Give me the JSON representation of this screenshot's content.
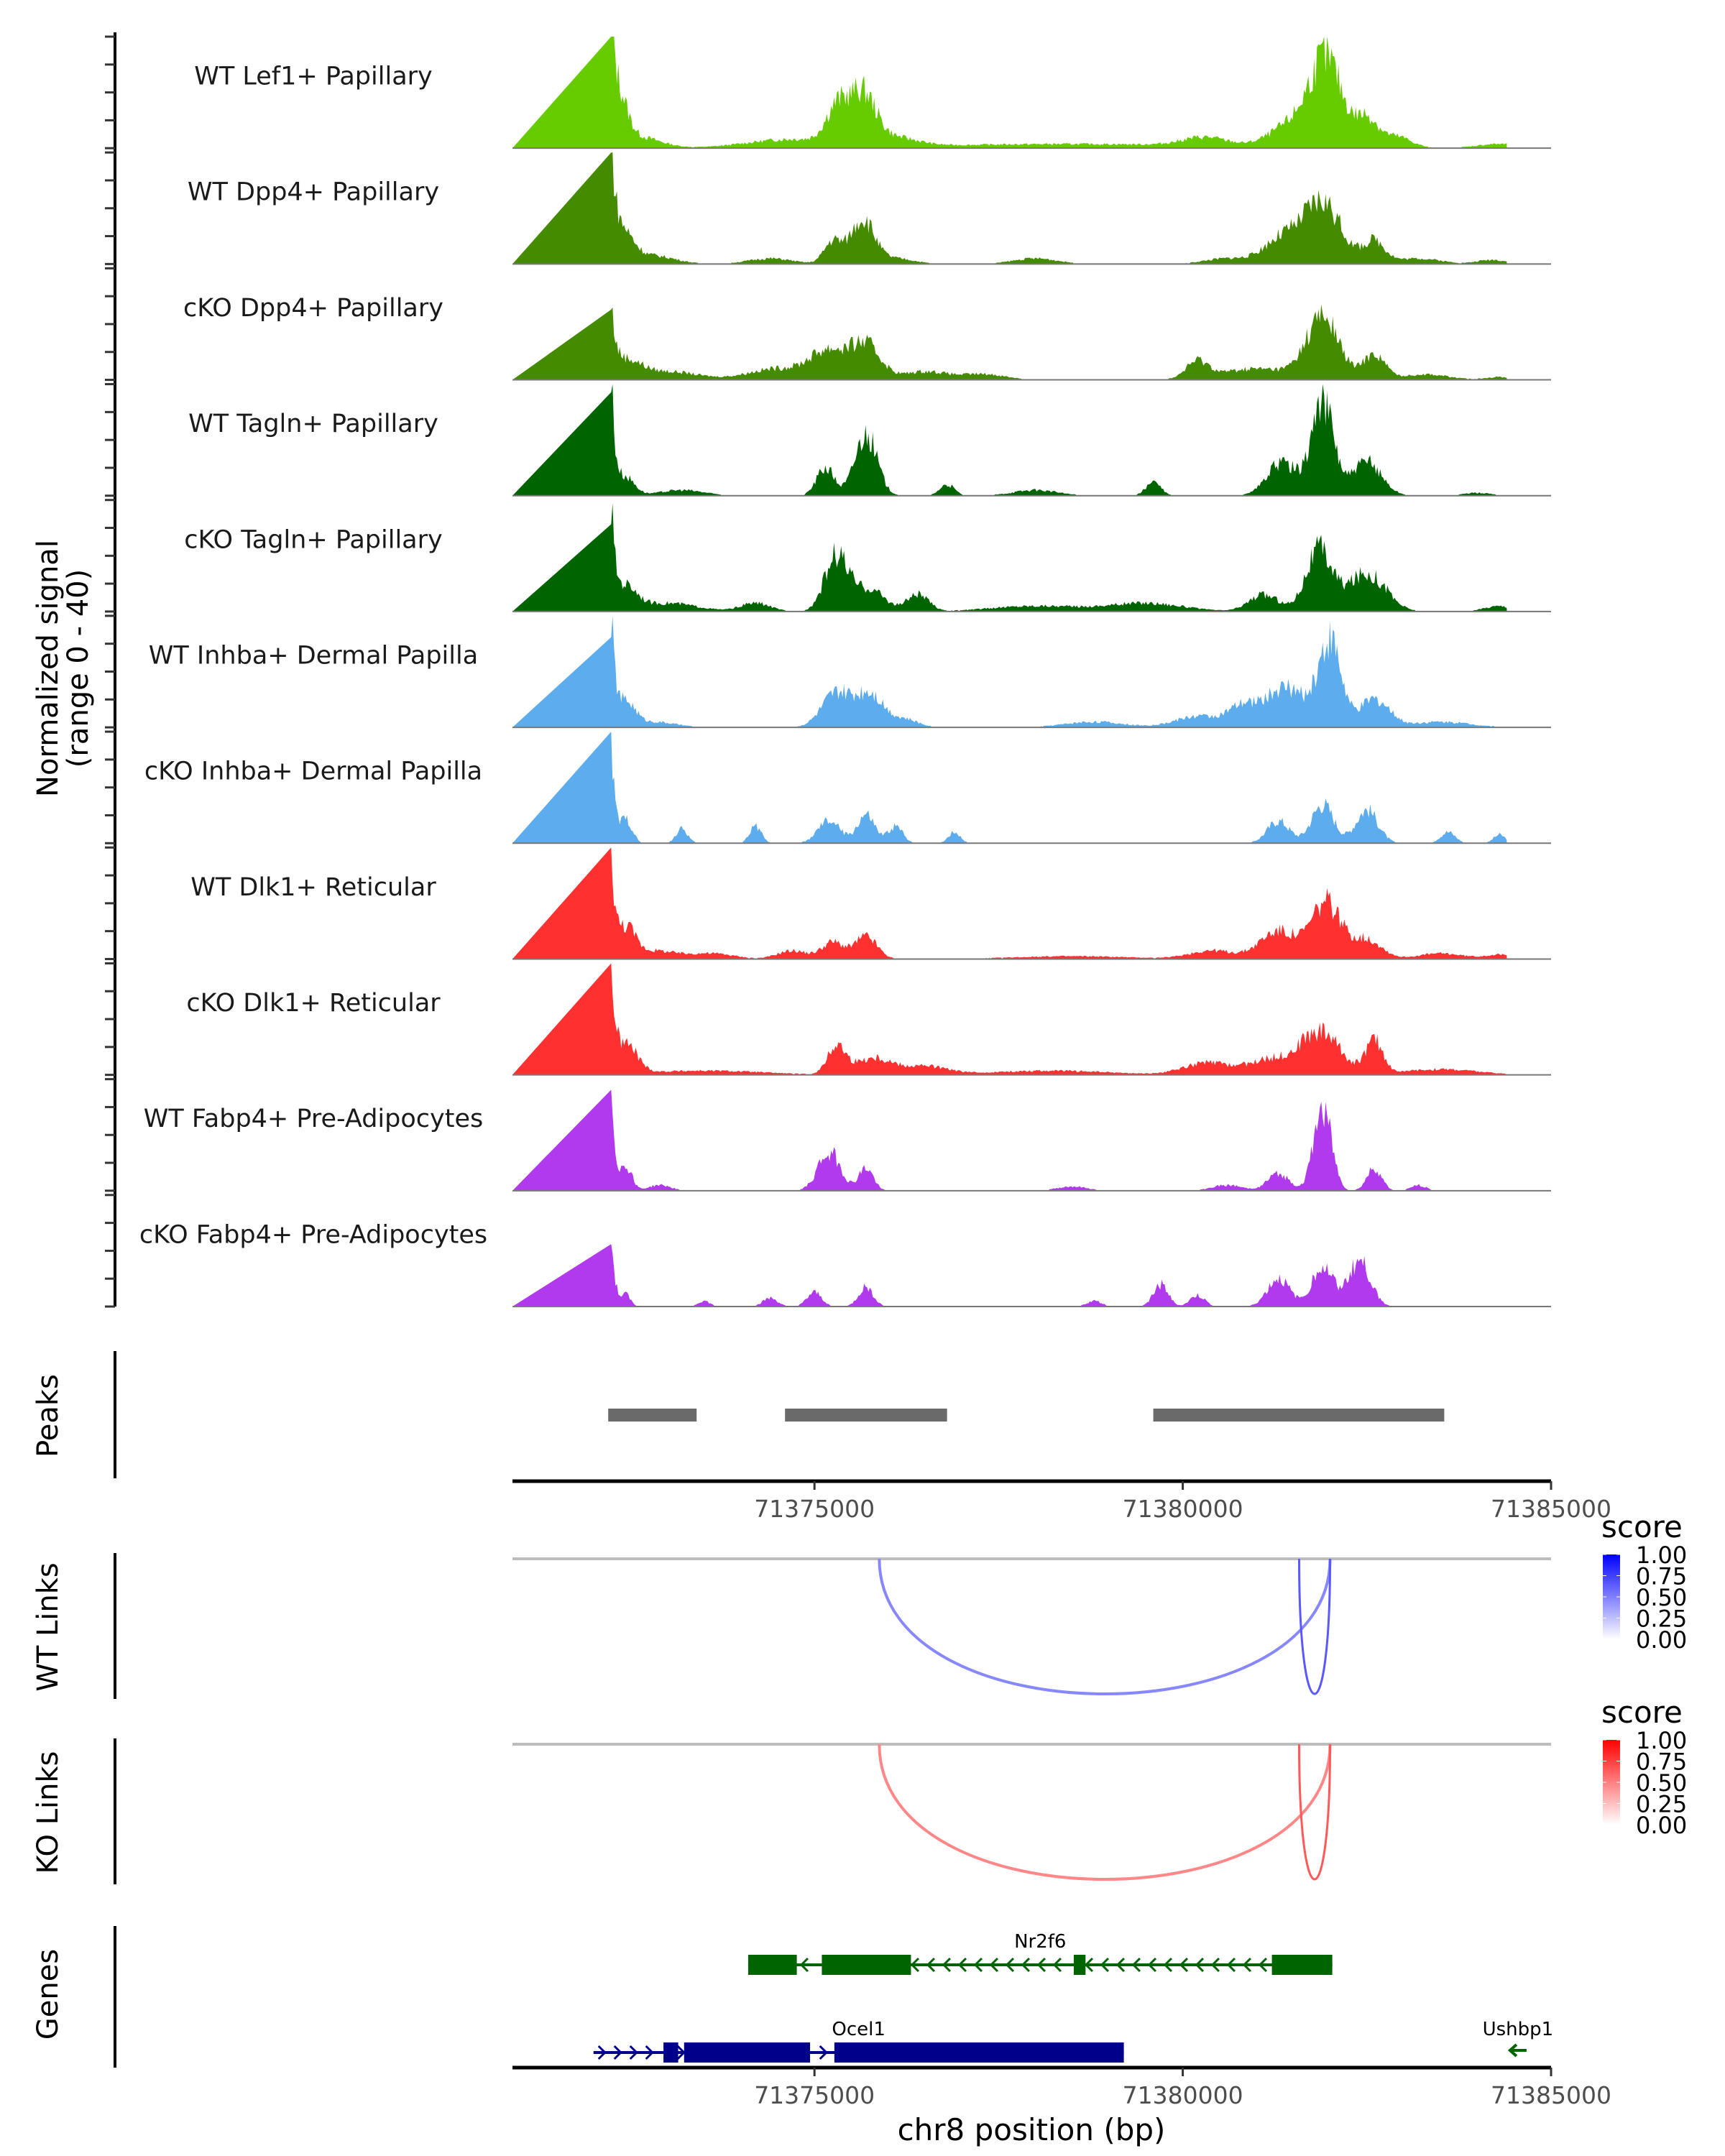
{
  "chart_data": {
    "type": "area",
    "title": "",
    "region": {
      "chrom": "chr8",
      "start": 71370900,
      "end": 71385000
    },
    "xlabel": "chr8 position (bp)",
    "x_ticks": [
      71375000,
      71380000,
      71385000
    ],
    "x_tick_labels": [
      "71375000",
      "71380000",
      "71385000"
    ],
    "coverage": {
      "ylabel_line1": "Normalized signal",
      "ylabel_line2": "(range 0 - 40)",
      "ylim": [
        0,
        40
      ],
      "tracks": [
        {
          "name": "WT Lef1+ Papillary",
          "color": "#66CC00",
          "peaks": [
            [
              71372250,
              38,
              60
            ],
            [
              71372350,
              14,
              120
            ],
            [
              71372600,
              4,
              300
            ],
            [
              71374700,
              3,
              600
            ],
            [
              71375300,
              12,
              150
            ],
            [
              71375650,
              18,
              180
            ],
            [
              71376100,
              3,
              300
            ],
            [
              71378500,
              1.5,
              2000
            ],
            [
              71380300,
              3,
              300
            ],
            [
              71381500,
              8,
              300
            ],
            [
              71381950,
              30,
              220
            ],
            [
              71382500,
              10,
              150
            ],
            [
              71382900,
              4,
              200
            ],
            [
              71384300,
              1.5,
              300
            ]
          ]
        },
        {
          "name": "WT Dpp4+ Papillary",
          "color": "#458B00",
          "peaks": [
            [
              71372250,
              38,
              60
            ],
            [
              71372400,
              10,
              150
            ],
            [
              71372800,
              3,
              300
            ],
            [
              71374400,
              2,
              300
            ],
            [
              71375250,
              8,
              120
            ],
            [
              71375650,
              16,
              160
            ],
            [
              71376100,
              2,
              250
            ],
            [
              71378000,
              2,
              300
            ],
            [
              71380600,
              2,
              300
            ],
            [
              71381350,
              9,
              250
            ],
            [
              71381900,
              22,
              250
            ],
            [
              71382600,
              8,
              150
            ],
            [
              71383200,
              2,
              300
            ],
            [
              71384200,
              1.5,
              200
            ]
          ]
        },
        {
          "name": "cKO Dpp4+ Papillary",
          "color": "#458B00",
          "peaks": [
            [
              71372250,
              22,
              60
            ],
            [
              71372450,
              6,
              200
            ],
            [
              71373000,
              3,
              400
            ],
            [
              71374500,
              4,
              400
            ],
            [
              71375200,
              10,
              250
            ],
            [
              71375700,
              12,
              200
            ],
            [
              71376500,
              3,
              300
            ],
            [
              71377300,
              2,
              300
            ],
            [
              71380200,
              6,
              150
            ],
            [
              71381000,
              4,
              500
            ],
            [
              71381900,
              22,
              220
            ],
            [
              71382600,
              9,
              150
            ],
            [
              71383300,
              2,
              300
            ],
            [
              71384300,
              1,
              200
            ]
          ]
        },
        {
          "name": "WT Tagln+ Papillary",
          "color": "#006400",
          "peaks": [
            [
              71372250,
              40,
              50
            ],
            [
              71372450,
              6,
              120
            ],
            [
              71373200,
              2,
              300
            ],
            [
              71375150,
              10,
              120
            ],
            [
              71375700,
              22,
              150
            ],
            [
              71376800,
              4,
              100
            ],
            [
              71378000,
              2,
              300
            ],
            [
              71379600,
              5,
              100
            ],
            [
              71381350,
              12,
              200
            ],
            [
              71381900,
              34,
              150
            ],
            [
              71382500,
              12,
              200
            ],
            [
              71384000,
              1,
              200
            ]
          ]
        },
        {
          "name": "cKO Tagln+ Papillary",
          "color": "#006400",
          "peaks": [
            [
              71372250,
              34,
              50
            ],
            [
              71372450,
              8,
              150
            ],
            [
              71373000,
              3,
              400
            ],
            [
              71374200,
              3,
              200
            ],
            [
              71375300,
              20,
              160
            ],
            [
              71375750,
              8,
              200
            ],
            [
              71376400,
              6,
              150
            ],
            [
              71378000,
              2,
              600
            ],
            [
              71379500,
              3,
              500
            ],
            [
              71381100,
              6,
              200
            ],
            [
              71381850,
              22,
              180
            ],
            [
              71382500,
              14,
              250
            ],
            [
              71384300,
              2,
              200
            ]
          ]
        },
        {
          "name": "WT Inhba+ Dermal Papilla",
          "color": "#5CACEE",
          "peaks": [
            [
              71372250,
              40,
              50
            ],
            [
              71372450,
              8,
              120
            ],
            [
              71372800,
              2,
              300
            ],
            [
              71375300,
              12,
              200
            ],
            [
              71375750,
              12,
              180
            ],
            [
              71376200,
              3,
              200
            ],
            [
              71378800,
              2,
              400
            ],
            [
              71380200,
              4,
              300
            ],
            [
              71380800,
              6,
              200
            ],
            [
              71381400,
              14,
              300
            ],
            [
              71382000,
              30,
              150
            ],
            [
              71382600,
              10,
              200
            ],
            [
              71383500,
              2,
              400
            ]
          ]
        },
        {
          "name": "cKO Inhba+ Dermal Papilla",
          "color": "#5CACEE",
          "peaks": [
            [
              71372250,
              34,
              50
            ],
            [
              71372450,
              8,
              80
            ],
            [
              71373200,
              5,
              80
            ],
            [
              71374200,
              6,
              80
            ],
            [
              71375200,
              8,
              150
            ],
            [
              71375700,
              10,
              120
            ],
            [
              71376100,
              6,
              100
            ],
            [
              71376900,
              4,
              80
            ],
            [
              71381300,
              8,
              150
            ],
            [
              71381900,
              14,
              150
            ],
            [
              71382500,
              12,
              150
            ],
            [
              71383600,
              4,
              100
            ],
            [
              71384300,
              3,
              80
            ]
          ]
        },
        {
          "name": "WT Dlk1+ Reticular",
          "color": "#FF3030",
          "peaks": [
            [
              71372250,
              36,
              50
            ],
            [
              71372450,
              10,
              120
            ],
            [
              71372800,
              3,
              300
            ],
            [
              71373600,
              2,
              300
            ],
            [
              71374700,
              3,
              200
            ],
            [
              71375250,
              6,
              150
            ],
            [
              71375700,
              8,
              150
            ],
            [
              71378500,
              1,
              800
            ],
            [
              71380400,
              3,
              300
            ],
            [
              71381300,
              10,
              250
            ],
            [
              71381950,
              20,
              200
            ],
            [
              71382500,
              7,
              200
            ],
            [
              71383500,
              2,
              300
            ],
            [
              71384300,
              1.5,
              200
            ]
          ]
        },
        {
          "name": "cKO Dlk1+ Reticular",
          "color": "#FF3030",
          "peaks": [
            [
              71372250,
              34,
              50
            ],
            [
              71372450,
              10,
              150
            ],
            [
              71373500,
              1.5,
              800
            ],
            [
              71375300,
              10,
              120
            ],
            [
              71375800,
              6,
              250
            ],
            [
              71376500,
              3,
              300
            ],
            [
              71378200,
              1.5,
              800
            ],
            [
              71380300,
              4,
              300
            ],
            [
              71381300,
              6,
              400
            ],
            [
              71381900,
              14,
              250
            ],
            [
              71382600,
              12,
              120
            ],
            [
              71383500,
              2,
              500
            ]
          ]
        },
        {
          "name": "WT Fabp4+ Pre-Adipocytes",
          "color": "#B23AEE",
          "peaks": [
            [
              71372250,
              36,
              50
            ],
            [
              71372450,
              8,
              80
            ],
            [
              71372900,
              2,
              150
            ],
            [
              71375200,
              14,
              150
            ],
            [
              71375700,
              8,
              100
            ],
            [
              71378500,
              1.5,
              200
            ],
            [
              71380600,
              2,
              200
            ],
            [
              71381300,
              6,
              150
            ],
            [
              71381900,
              30,
              120
            ],
            [
              71382600,
              8,
              100
            ],
            [
              71383200,
              2,
              100
            ]
          ]
        },
        {
          "name": "cKO Fabp4+ Pre-Adipocytes",
          "color": "#B23AEE",
          "peaks": [
            [
              71372250,
              24,
              50
            ],
            [
              71372450,
              4,
              60
            ],
            [
              71373500,
              2,
              80
            ],
            [
              71374400,
              3,
              100
            ],
            [
              71375000,
              5,
              100
            ],
            [
              71375700,
              7,
              100
            ],
            [
              71378800,
              2,
              100
            ],
            [
              71379700,
              8,
              100
            ],
            [
              71380200,
              4,
              100
            ],
            [
              71381300,
              10,
              150
            ],
            [
              71381900,
              14,
              150
            ],
            [
              71382400,
              16,
              150
            ]
          ]
        }
      ]
    },
    "peaks_track": {
      "label": "Peaks",
      "color": "#6a6a6a",
      "ranges": [
        [
          71372200,
          71373400
        ],
        [
          71374600,
          71376800
        ],
        [
          71379600,
          71383550
        ]
      ]
    },
    "links": [
      {
        "label": "WT Links",
        "legend_title": "score",
        "legend_ticks": [
          "1.00",
          "0.75",
          "0.50",
          "0.25",
          "0.00"
        ],
        "high_color": "#0000FF",
        "arcs": [
          {
            "start": 71375880,
            "end": 71382000,
            "score": 0.45
          },
          {
            "start": 71381580,
            "end": 71382000,
            "score": 0.75
          }
        ]
      },
      {
        "label": "KO Links",
        "legend_title": "score",
        "legend_ticks": [
          "1.00",
          "0.75",
          "0.50",
          "0.25",
          "0.00"
        ],
        "high_color": "#FF0000",
        "arcs": [
          {
            "start": 71375880,
            "end": 71382000,
            "score": 0.45
          },
          {
            "start": 71381580,
            "end": 71382000,
            "score": 0.75
          }
        ]
      }
    ],
    "genes": {
      "label": "Genes",
      "items": [
        {
          "name": "Nr2f6",
          "strand": "-",
          "color": "#006400",
          "start": 71374100,
          "end": 71382030,
          "row": 0,
          "exons": [
            [
              71374100,
              71374760
            ],
            [
              71375100,
              71376310
            ],
            [
              71378520,
              71378680
            ],
            [
              71381210,
              71382030
            ]
          ]
        },
        {
          "name": "Ocel1",
          "strand": "+",
          "color": "#00008B",
          "start": 71372000,
          "end": 71379200,
          "row": 1,
          "exons": [
            [
              71372950,
              71373150
            ],
            [
              71373230,
              71374940
            ],
            [
              71375270,
              71379200
            ]
          ]
        },
        {
          "name": "Ushbp1",
          "strand": "-",
          "color": "#006400",
          "start": 71384450,
          "end": 71384650,
          "row": 1,
          "exons": []
        }
      ]
    }
  }
}
